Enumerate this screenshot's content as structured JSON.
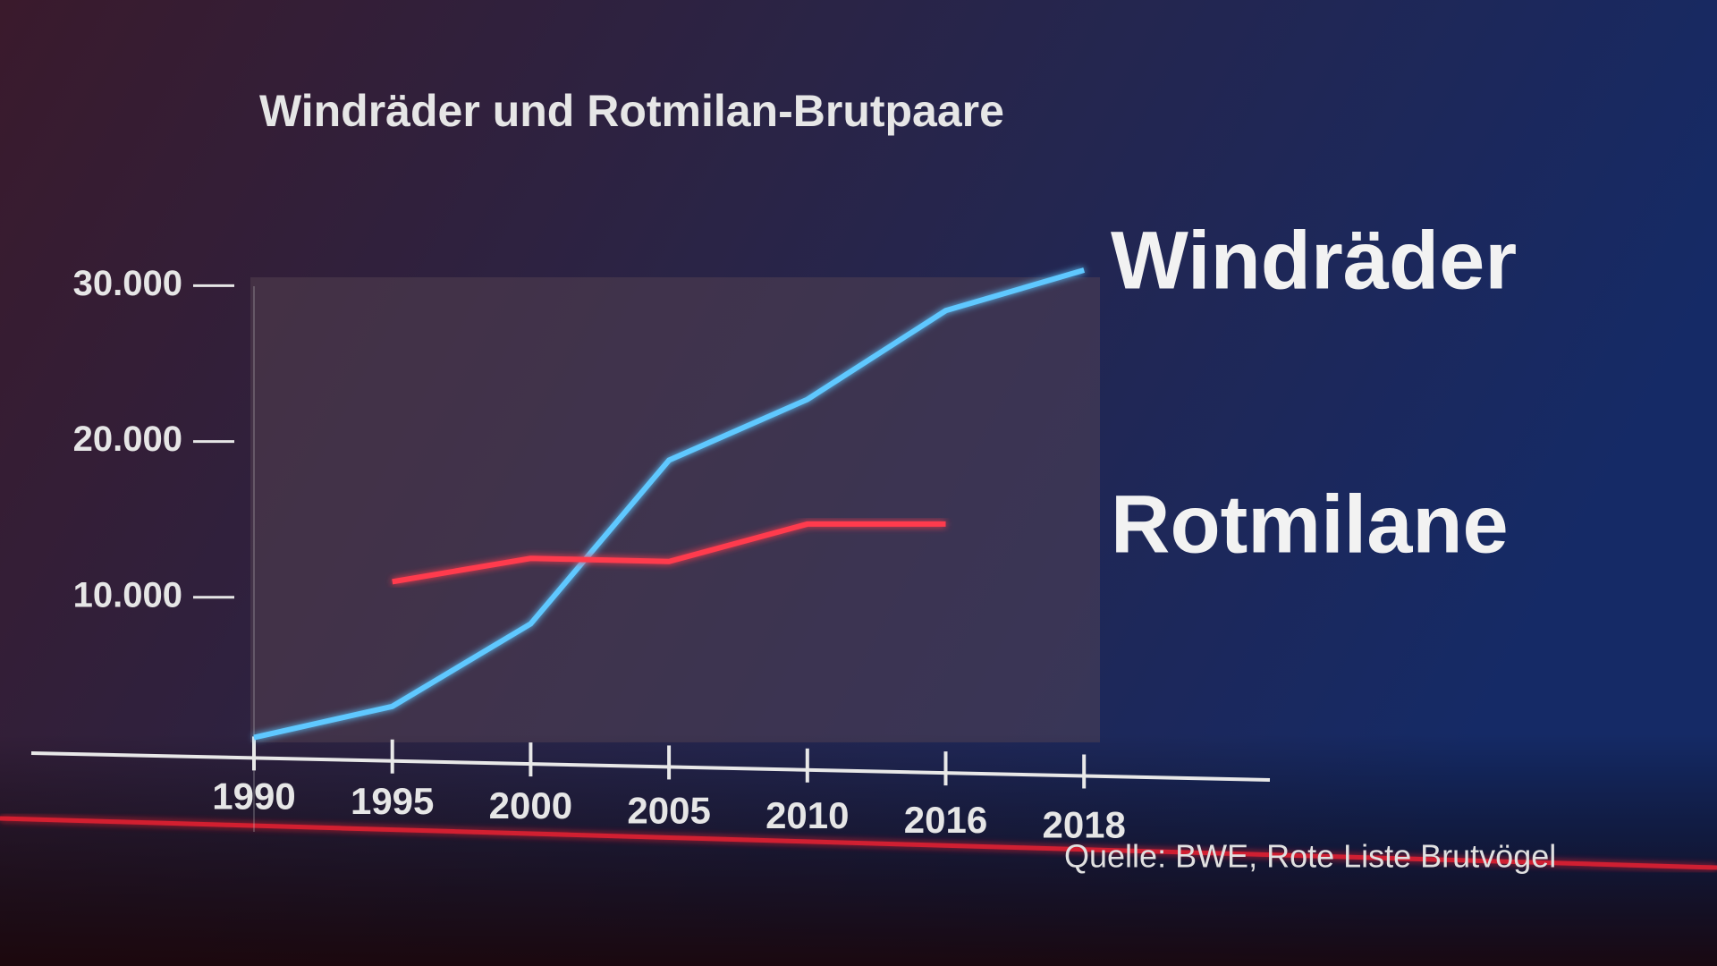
{
  "chart_data": {
    "type": "line",
    "title": "Windräder und Rotmilan-Brutpaare",
    "categories": [
      "1990",
      "1995",
      "2000",
      "2005",
      "2010",
      "2016",
      "2018"
    ],
    "series": [
      {
        "name": "Windräder",
        "color": "#5ec8ff",
        "values": [
          1000,
          3000,
          8300,
          18800,
          22700,
          28400,
          31000
        ]
      },
      {
        "name": "Rotmilane",
        "color": "#ff3b4e",
        "values": [
          null,
          11000,
          12500,
          12300,
          14700,
          14700,
          null
        ]
      }
    ],
    "ylim": [
      0,
      31000
    ],
    "yticks": [
      {
        "value": 10000,
        "label": "10.000"
      },
      {
        "value": 20000,
        "label": "20.000"
      },
      {
        "value": 30000,
        "label": "30.000"
      }
    ],
    "source": "Quelle: BWE, Rote Liste Brutvögel"
  }
}
